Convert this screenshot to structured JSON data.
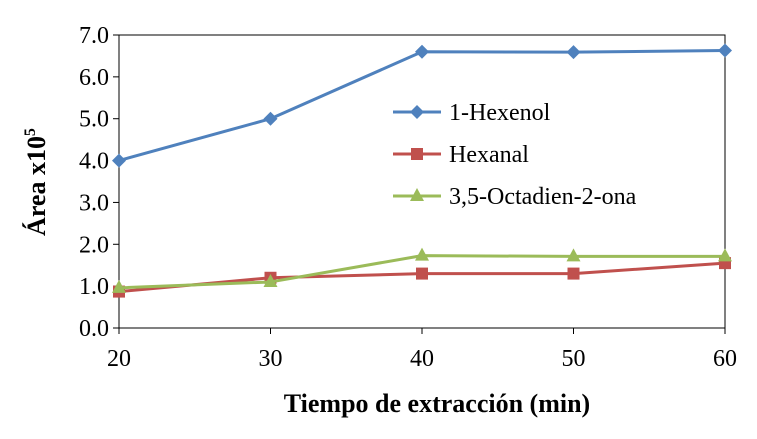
{
  "chart_data": {
    "type": "line",
    "xlabel": "Tiempo de extracción (min)",
    "ylabel": "Área x10",
    "ylabel_sup": "5",
    "x": [
      20,
      30,
      40,
      50,
      60
    ],
    "xlim": [
      20,
      60
    ],
    "ylim": [
      0.0,
      7.0
    ],
    "xticks": [
      "20",
      "30",
      "40",
      "50",
      "60"
    ],
    "yticks": [
      "0.0",
      "1.0",
      "2.0",
      "3.0",
      "4.0",
      "5.0",
      "6.0",
      "7.0"
    ],
    "grid": false,
    "legend_position": "center-right",
    "series": [
      {
        "name": "1-Hexenol",
        "values": [
          4.0,
          5.0,
          6.6,
          6.59,
          6.63
        ],
        "color": "#4F81BD",
        "marker": "diamond"
      },
      {
        "name": "Hexanal",
        "values": [
          0.87,
          1.2,
          1.3,
          1.3,
          1.55
        ],
        "color": "#C0504D",
        "marker": "square"
      },
      {
        "name": "3,5-Octadien-2-ona",
        "values": [
          0.96,
          1.1,
          1.73,
          1.71,
          1.71
        ],
        "color": "#9BBB59",
        "marker": "triangle"
      }
    ]
  }
}
